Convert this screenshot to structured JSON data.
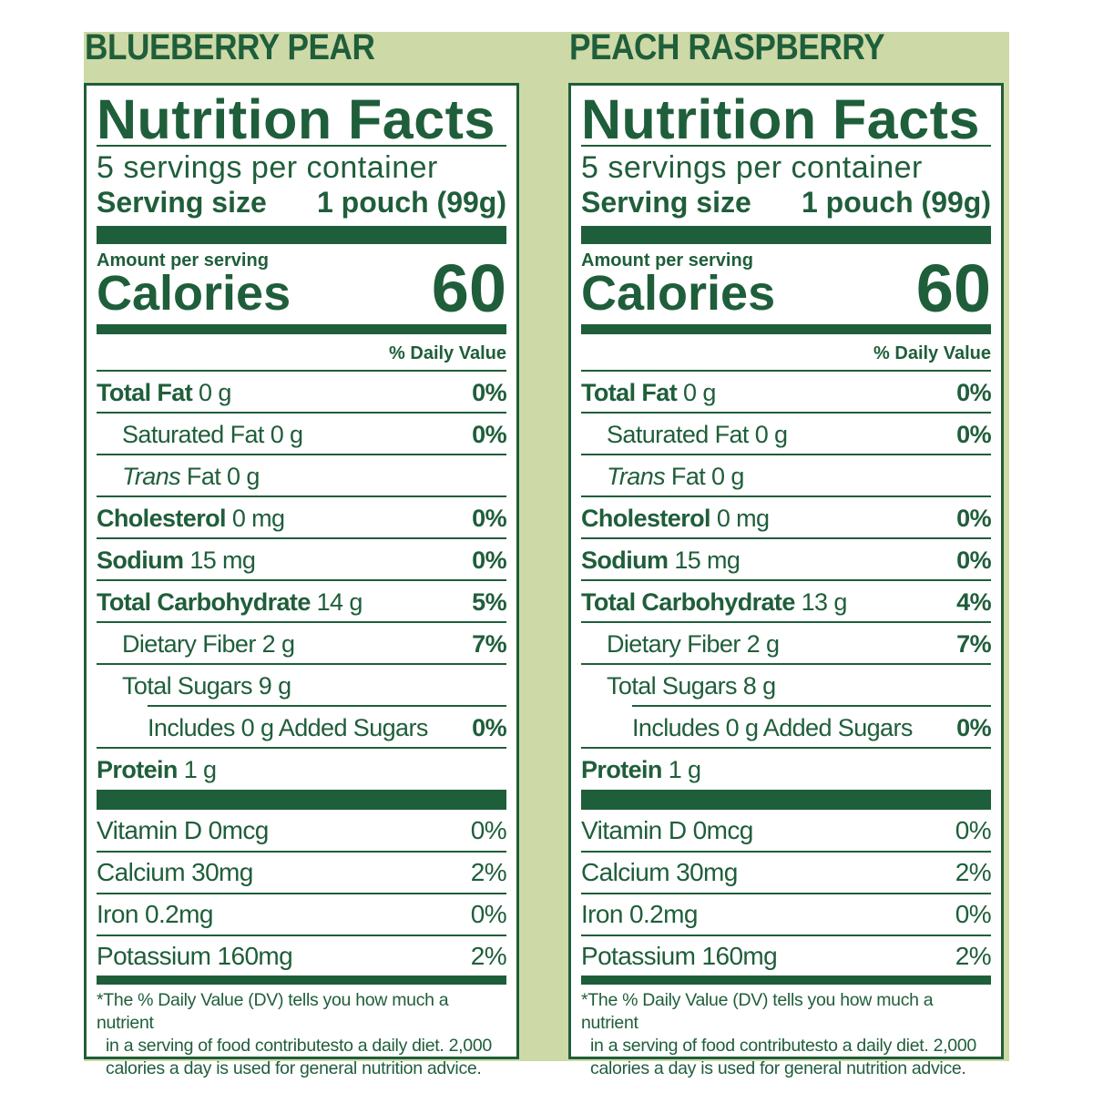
{
  "colors": {
    "green": "#1f5e3a",
    "band": "#cdd9a6"
  },
  "panels": [
    {
      "flavor": "BLUEBERRY PEAR",
      "title": "Nutrition Facts",
      "servings": "5 servings per container",
      "serving_size_label": "Serving size",
      "serving_size_value": "1 pouch (99g)",
      "amount_per_serving": "Amount per serving",
      "calories_label": "Calories",
      "calories_value": "60",
      "dv_header": "% Daily Value",
      "nutrients": [
        {
          "name": "Total Fat",
          "amount": "0 g",
          "dv": "0%",
          "bold": true,
          "indent": 0
        },
        {
          "name": "Saturated Fat",
          "amount": "0 g",
          "dv": "0%",
          "bold": false,
          "indent": 1
        },
        {
          "name": "Trans",
          "name_rest": "Fat",
          "amount": "0 g",
          "dv": "",
          "bold": false,
          "indent": 1,
          "italic": true
        },
        {
          "name": "Cholesterol",
          "amount": "0 mg",
          "dv": "0%",
          "bold": true,
          "indent": 0
        },
        {
          "name": "Sodium",
          "amount": "15 mg",
          "dv": "0%",
          "bold": true,
          "indent": 0
        },
        {
          "name": "Total Carbohydrate",
          "amount": "14 g",
          "dv": "5%",
          "bold": true,
          "indent": 0
        },
        {
          "name": "Dietary Fiber",
          "amount": "2 g",
          "dv": "7%",
          "bold": false,
          "indent": 1
        },
        {
          "name": "Total Sugars",
          "amount": "9 g",
          "dv": "",
          "bold": false,
          "indent": 1
        },
        {
          "name": "Includes 0 g Added Sugars",
          "amount": "",
          "dv": "0%",
          "bold": false,
          "indent": 2
        },
        {
          "name": "Protein",
          "amount": "1 g",
          "dv": "",
          "bold": true,
          "indent": 0
        }
      ],
      "vitamins": [
        {
          "name": "Vitamin D 0mcg",
          "dv": "0%"
        },
        {
          "name": "Calcium 30mg",
          "dv": "2%"
        },
        {
          "name": "Iron 0.2mg",
          "dv": "0%"
        },
        {
          "name": "Potassium 160mg",
          "dv": "2%"
        }
      ],
      "footnote_1": "*The % Daily Value (DV) tells you how much a nutrient",
      "footnote_2": "in a serving of food contributesto a daily diet. 2,000 calories a day is used for general nutrition advice."
    },
    {
      "flavor": "PEACH RASPBERRY",
      "title": "Nutrition Facts",
      "servings": "5 servings per container",
      "serving_size_label": "Serving size",
      "serving_size_value": "1 pouch (99g)",
      "amount_per_serving": "Amount per serving",
      "calories_label": "Calories",
      "calories_value": "60",
      "dv_header": "% Daily Value",
      "nutrients": [
        {
          "name": "Total Fat",
          "amount": "0 g",
          "dv": "0%",
          "bold": true,
          "indent": 0
        },
        {
          "name": "Saturated Fat",
          "amount": "0 g",
          "dv": "0%",
          "bold": false,
          "indent": 1
        },
        {
          "name": "Trans",
          "name_rest": "Fat",
          "amount": "0 g",
          "dv": "",
          "bold": false,
          "indent": 1,
          "italic": true
        },
        {
          "name": "Cholesterol",
          "amount": "0 mg",
          "dv": "0%",
          "bold": true,
          "indent": 0
        },
        {
          "name": "Sodium",
          "amount": "15 mg",
          "dv": "0%",
          "bold": true,
          "indent": 0
        },
        {
          "name": "Total Carbohydrate",
          "amount": "13 g",
          "dv": "4%",
          "bold": true,
          "indent": 0
        },
        {
          "name": "Dietary Fiber",
          "amount": "2 g",
          "dv": "7%",
          "bold": false,
          "indent": 1
        },
        {
          "name": "Total Sugars",
          "amount": "8 g",
          "dv": "",
          "bold": false,
          "indent": 1
        },
        {
          "name": "Includes 0 g Added Sugars",
          "amount": "",
          "dv": "0%",
          "bold": false,
          "indent": 2
        },
        {
          "name": "Protein",
          "amount": "1 g",
          "dv": "",
          "bold": true,
          "indent": 0
        }
      ],
      "vitamins": [
        {
          "name": "Vitamin D 0mcg",
          "dv": "0%"
        },
        {
          "name": "Calcium 30mg",
          "dv": "2%"
        },
        {
          "name": "Iron 0.2mg",
          "dv": "0%"
        },
        {
          "name": "Potassium 160mg",
          "dv": "2%"
        }
      ],
      "footnote_1": "*The % Daily Value (DV) tells you how much a nutrient",
      "footnote_2": "in a serving of food contributesto a daily diet. 2,000 calories a day is used for general nutrition advice."
    }
  ]
}
